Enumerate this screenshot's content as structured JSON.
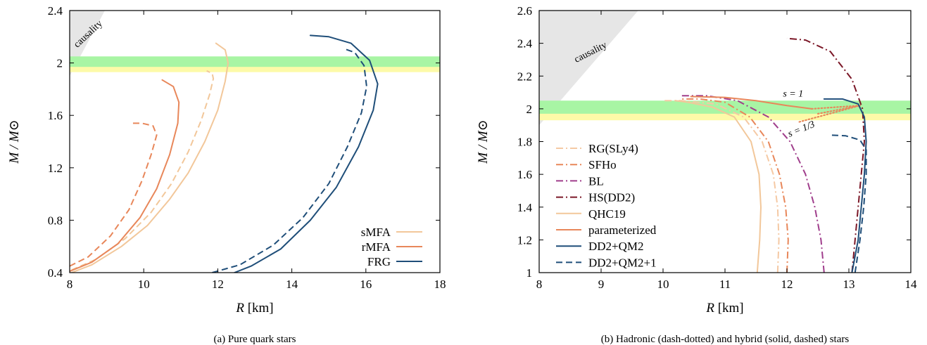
{
  "chart_data": [
    {
      "type": "line",
      "caption": "(a) Pure quark stars",
      "xlabel_var": "R",
      "xlabel_unit": "[km]",
      "ylabel": "M / M⊙",
      "xlim": [
        8,
        18
      ],
      "ylim": [
        0.4,
        2.4
      ],
      "xticks": [
        8,
        10,
        12,
        14,
        16,
        18
      ],
      "yticks": [
        0.4,
        0.8,
        1.2,
        1.6,
        2,
        2.4
      ],
      "xtick_labels": [
        "8",
        "10",
        "12",
        "14",
        "16",
        "18"
      ],
      "ytick_labels": [
        "0.4",
        "0.8",
        "1.2",
        "1.6",
        "2",
        "2.4"
      ],
      "grid": false,
      "legend_position": "bottom-right",
      "legend": [
        {
          "label": "sMFA",
          "color": "#f2c79a",
          "dash": "solid"
        },
        {
          "label": "rMFA",
          "color": "#e8875a",
          "dash": "solid"
        },
        {
          "label": "FRG",
          "color": "#1f4e79",
          "dash": "solid"
        }
      ],
      "bands": [
        {
          "y0": 1.93,
          "y1": 2.01,
          "color": "#fdfaa8"
        },
        {
          "y0": 1.97,
          "y1": 2.05,
          "color": "#a8f5a4"
        }
      ],
      "causality": {
        "label": "causality",
        "polygon": [
          [
            8,
            1.9
          ],
          [
            8,
            2.4
          ],
          [
            8.95,
            2.4
          ]
        ]
      },
      "series": [
        {
          "legend": "sMFA",
          "color": "#f2c79a",
          "dash": "solid",
          "points": [
            [
              8.05,
              0.4
            ],
            [
              8.6,
              0.46
            ],
            [
              9.4,
              0.6
            ],
            [
              10.1,
              0.76
            ],
            [
              10.7,
              0.96
            ],
            [
              11.2,
              1.16
            ],
            [
              11.65,
              1.4
            ],
            [
              12.0,
              1.64
            ],
            [
              12.2,
              1.86
            ],
            [
              12.28,
              2.0
            ],
            [
              12.2,
              2.1
            ],
            [
              11.95,
              2.15
            ]
          ]
        },
        {
          "legend": "sMFA",
          "color": "#f2c79a",
          "dash": "dashed",
          "points": [
            [
              8.05,
              0.42
            ],
            [
              8.7,
              0.5
            ],
            [
              9.5,
              0.66
            ],
            [
              10.2,
              0.86
            ],
            [
              10.75,
              1.08
            ],
            [
              11.2,
              1.32
            ],
            [
              11.55,
              1.56
            ],
            [
              11.78,
              1.76
            ],
            [
              11.88,
              1.88
            ],
            [
              11.85,
              1.92
            ],
            [
              11.7,
              1.94
            ]
          ]
        },
        {
          "legend": "rMFA",
          "color": "#e8875a",
          "dash": "solid",
          "points": [
            [
              8.0,
              0.41
            ],
            [
              8.6,
              0.48
            ],
            [
              9.3,
              0.62
            ],
            [
              9.9,
              0.82
            ],
            [
              10.35,
              1.04
            ],
            [
              10.7,
              1.3
            ],
            [
              10.92,
              1.54
            ],
            [
              10.95,
              1.7
            ],
            [
              10.8,
              1.82
            ],
            [
              10.5,
              1.87
            ]
          ]
        },
        {
          "legend": "rMFA",
          "color": "#e8875a",
          "dash": "dashed",
          "points": [
            [
              8.0,
              0.45
            ],
            [
              8.5,
              0.52
            ],
            [
              9.1,
              0.68
            ],
            [
              9.6,
              0.88
            ],
            [
              9.95,
              1.1
            ],
            [
              10.2,
              1.3
            ],
            [
              10.35,
              1.45
            ],
            [
              10.25,
              1.52
            ],
            [
              9.95,
              1.54
            ],
            [
              9.7,
              1.54
            ]
          ]
        },
        {
          "legend": "FRG",
          "color": "#1f4e79",
          "dash": "solid",
          "points": [
            [
              12.45,
              0.4
            ],
            [
              12.9,
              0.45
            ],
            [
              13.7,
              0.58
            ],
            [
              14.5,
              0.8
            ],
            [
              15.2,
              1.05
            ],
            [
              15.8,
              1.36
            ],
            [
              16.2,
              1.64
            ],
            [
              16.32,
              1.84
            ],
            [
              16.1,
              2.02
            ],
            [
              15.6,
              2.15
            ],
            [
              15.0,
              2.2
            ],
            [
              14.5,
              2.21
            ]
          ]
        },
        {
          "legend": "FRG",
          "color": "#1f4e79",
          "dash": "dashed",
          "points": [
            [
              11.85,
              0.4
            ],
            [
              12.6,
              0.46
            ],
            [
              13.5,
              0.61
            ],
            [
              14.3,
              0.82
            ],
            [
              15.0,
              1.08
            ],
            [
              15.5,
              1.36
            ],
            [
              15.88,
              1.62
            ],
            [
              16.02,
              1.82
            ],
            [
              15.95,
              1.98
            ],
            [
              15.7,
              2.08
            ],
            [
              15.4,
              2.11
            ]
          ]
        }
      ]
    },
    {
      "type": "line",
      "caption": "(b) Hadronic (dash-dotted) and hybrid (solid, dashed) stars",
      "xlabel_var": "R",
      "xlabel_unit": "[km]",
      "ylabel": "M / M⊙",
      "xlim": [
        8,
        14
      ],
      "ylim": [
        1,
        2.6
      ],
      "xticks": [
        8,
        9,
        10,
        11,
        12,
        13,
        14
      ],
      "yticks": [
        1,
        1.2,
        1.4,
        1.6,
        1.8,
        2,
        2.2,
        2.4,
        2.6
      ],
      "xtick_labels": [
        "8",
        "9",
        "10",
        "11",
        "12",
        "13",
        "14"
      ],
      "ytick_labels": [
        "1",
        "1.2",
        "1.4",
        "1.6",
        "1.8",
        "2",
        "2.2",
        "2.4",
        "2.6"
      ],
      "grid": false,
      "legend_position": "bottom-left",
      "legend": [
        {
          "label": "RG(SLy4)",
          "color": "#f5c9a4",
          "dash": "dashdot"
        },
        {
          "label": "SFHo",
          "color": "#e8875a",
          "dash": "dashdot"
        },
        {
          "label": "BL",
          "color": "#a03e8c",
          "dash": "dashdot"
        },
        {
          "label": "HS(DD2)",
          "color": "#7b1727",
          "dash": "dashdot"
        },
        {
          "label": "QHC19",
          "color": "#f2c79a",
          "dash": "solid"
        },
        {
          "label": "parameterized",
          "color": "#e8875a",
          "dash": "solid"
        },
        {
          "label": "DD2+QM2",
          "color": "#1f4e79",
          "dash": "solid"
        },
        {
          "label": "DD2+QM2+1",
          "color": "#1f4e79",
          "dash": "dashed"
        }
      ],
      "bands": [
        {
          "y0": 1.93,
          "y1": 2.01,
          "color": "#fdfaa8"
        },
        {
          "y0": 1.97,
          "y1": 2.05,
          "color": "#a8f5a4"
        }
      ],
      "causality": {
        "label": "causality",
        "polygon": [
          [
            8,
            1.9
          ],
          [
            8,
            2.6
          ],
          [
            9.6,
            2.6
          ]
        ]
      },
      "annotations": [
        {
          "text": "s = 1",
          "x": 12.1,
          "y": 2.075
        },
        {
          "text": "s = 1/3",
          "x": 12.25,
          "y": 1.86,
          "rotate": -22
        }
      ],
      "series": [
        {
          "legend": "RG(SLy4)",
          "color": "#f5c9a4",
          "dash": "dashdot",
          "points": [
            [
              11.85,
              1.0
            ],
            [
              11.87,
              1.2
            ],
            [
              11.85,
              1.4
            ],
            [
              11.78,
              1.6
            ],
            [
              11.6,
              1.8
            ],
            [
              11.3,
              1.95
            ],
            [
              10.85,
              2.03
            ],
            [
              10.3,
              2.05
            ],
            [
              10.0,
              2.05
            ]
          ]
        },
        {
          "legend": "SFHo",
          "color": "#e8875a",
          "dash": "dashdot",
          "points": [
            [
              12.0,
              1.0
            ],
            [
              12.02,
              1.2
            ],
            [
              11.98,
              1.4
            ],
            [
              11.88,
              1.6
            ],
            [
              11.7,
              1.8
            ],
            [
              11.4,
              1.95
            ],
            [
              11.0,
              2.04
            ],
            [
              10.6,
              2.06
            ],
            [
              10.3,
              2.06
            ]
          ]
        },
        {
          "legend": "BL",
          "color": "#a03e8c",
          "dash": "dashdot",
          "points": [
            [
              12.6,
              1.0
            ],
            [
              12.55,
              1.2
            ],
            [
              12.45,
              1.4
            ],
            [
              12.3,
              1.6
            ],
            [
              12.05,
              1.8
            ],
            [
              11.7,
              1.95
            ],
            [
              11.2,
              2.05
            ],
            [
              10.7,
              2.08
            ],
            [
              10.3,
              2.08
            ]
          ]
        },
        {
          "legend": "HS(DD2)",
          "color": "#7b1727",
          "dash": "dashdot",
          "points": [
            [
              13.05,
              1.0
            ],
            [
              13.1,
              1.2
            ],
            [
              13.15,
              1.4
            ],
            [
              13.2,
              1.6
            ],
            [
              13.25,
              1.8
            ],
            [
              13.22,
              2.0
            ],
            [
              13.05,
              2.18
            ],
            [
              12.7,
              2.35
            ],
            [
              12.3,
              2.42
            ],
            [
              12.0,
              2.43
            ]
          ]
        },
        {
          "legend": "QHC19",
          "color": "#f2c79a",
          "dash": "solid",
          "points": [
            [
              11.52,
              1.0
            ],
            [
              11.56,
              1.2
            ],
            [
              11.58,
              1.4
            ],
            [
              11.55,
              1.6
            ],
            [
              11.42,
              1.8
            ],
            [
              11.15,
              1.95
            ],
            [
              10.8,
              2.01
            ],
            [
              10.4,
              2.04
            ],
            [
              10.2,
              2.05
            ]
          ]
        },
        {
          "legend": "parameterized",
          "color": "#e8875a",
          "dash": "solid",
          "points": [
            [
              10.45,
              2.075
            ],
            [
              11.0,
              2.07
            ],
            [
              11.5,
              2.05
            ],
            [
              12.0,
              2.02
            ],
            [
              12.4,
              2.0
            ]
          ]
        },
        {
          "legend": "parameterized",
          "color": "#e8875a",
          "dash": "dotted",
          "points": [
            [
              12.4,
              2.0
            ],
            [
              13.18,
              2.02
            ]
          ]
        },
        {
          "legend": "parameterized",
          "color": "#e8875a",
          "dash": "dotted",
          "points": [
            [
              12.2,
              1.92
            ],
            [
              13.18,
              2.02
            ]
          ]
        },
        {
          "legend": "parameterized",
          "color": "#e8875a",
          "dash": "dotted",
          "points": [
            [
              12.5,
              1.97
            ],
            [
              13.18,
              2.02
            ]
          ]
        },
        {
          "legend": "DD2+QM2",
          "color": "#1f4e79",
          "dash": "solid",
          "points": [
            [
              13.05,
              1.0
            ],
            [
              13.15,
              1.2
            ],
            [
              13.2,
              1.4
            ],
            [
              13.25,
              1.6
            ],
            [
              13.28,
              1.8
            ],
            [
              13.25,
              1.95
            ],
            [
              13.15,
              2.03
            ],
            [
              12.9,
              2.06
            ],
            [
              12.6,
              2.06
            ]
          ]
        },
        {
          "legend": "DD2+QM2+1",
          "color": "#1f4e79",
          "dash": "dashed",
          "points": [
            [
              13.1,
              1.0
            ],
            [
              13.18,
              1.2
            ],
            [
              13.24,
              1.4
            ],
            [
              13.28,
              1.6
            ],
            [
              13.28,
              1.75
            ],
            [
              13.18,
              1.81
            ],
            [
              12.95,
              1.835
            ],
            [
              12.7,
              1.84
            ]
          ]
        }
      ]
    }
  ]
}
